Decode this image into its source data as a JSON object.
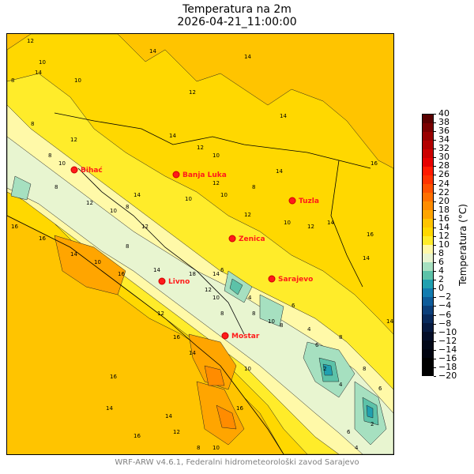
{
  "title": {
    "line1": "Temperatura na 2m",
    "line2": "2026-04-21_11:00:00"
  },
  "colorbar": {
    "label": "Temperatura (°C)",
    "ticks": [
      "40",
      "38",
      "36",
      "34",
      "32",
      "30",
      "28",
      "26",
      "24",
      "22",
      "20",
      "18",
      "16",
      "14",
      "12",
      "10",
      "8",
      "6",
      "4",
      "2",
      "0",
      "−2",
      "−4",
      "−6",
      "−8",
      "−10",
      "−12",
      "−14",
      "−16",
      "−18",
      "−20"
    ],
    "colors": [
      "#5a0000",
      "#7a0000",
      "#990000",
      "#b30000",
      "#cc0000",
      "#e60000",
      "#ff1a00",
      "#ff3300",
      "#ff5200",
      "#ff7000",
      "#ff8c00",
      "#ffa500",
      "#ffc400",
      "#ffd800",
      "#ffec2a",
      "#fff9a8",
      "#e8f5d0",
      "#a6e0c0",
      "#5cc2a8",
      "#20a0b0",
      "#127cb0",
      "#0e5c9a",
      "#0b3f7a",
      "#082a5c",
      "#061a40",
      "#040e28",
      "#020818",
      "#010410",
      "#000000",
      "#000000"
    ]
  },
  "cities": [
    {
      "name": "Bihać"
    },
    {
      "name": "Banja Luka"
    },
    {
      "name": "Tuzla"
    },
    {
      "name": "Zenica"
    },
    {
      "name": "Sarajevo"
    },
    {
      "name": "Livno"
    },
    {
      "name": "Mostar"
    }
  ],
  "contour_labels": [
    "12",
    "10",
    "14",
    "14",
    "10",
    "8",
    "12",
    "14",
    "12",
    "10",
    "14",
    "8",
    "8",
    "10",
    "12",
    "14",
    "16",
    "8",
    "12",
    "10",
    "14",
    "8",
    "12",
    "10",
    "12",
    "10",
    "8",
    "14",
    "12",
    "10",
    "12",
    "14",
    "16",
    "14",
    "16",
    "16",
    "14",
    "10",
    "16",
    "14",
    "18",
    "8",
    "6",
    "12",
    "10",
    "8",
    "4",
    "8",
    "6",
    "10",
    "8",
    "4",
    "6",
    "2",
    "4",
    "8",
    "6",
    "2",
    "10",
    "12",
    "16",
    "14",
    "14",
    "16",
    "14",
    "12",
    "8",
    "10",
    "6",
    "4",
    "8",
    "14",
    "16",
    "16",
    "14"
  ],
  "footer": "WRF-ARW v4.6.1, Federalni hidrometeorološki zavod Sarajevo"
}
